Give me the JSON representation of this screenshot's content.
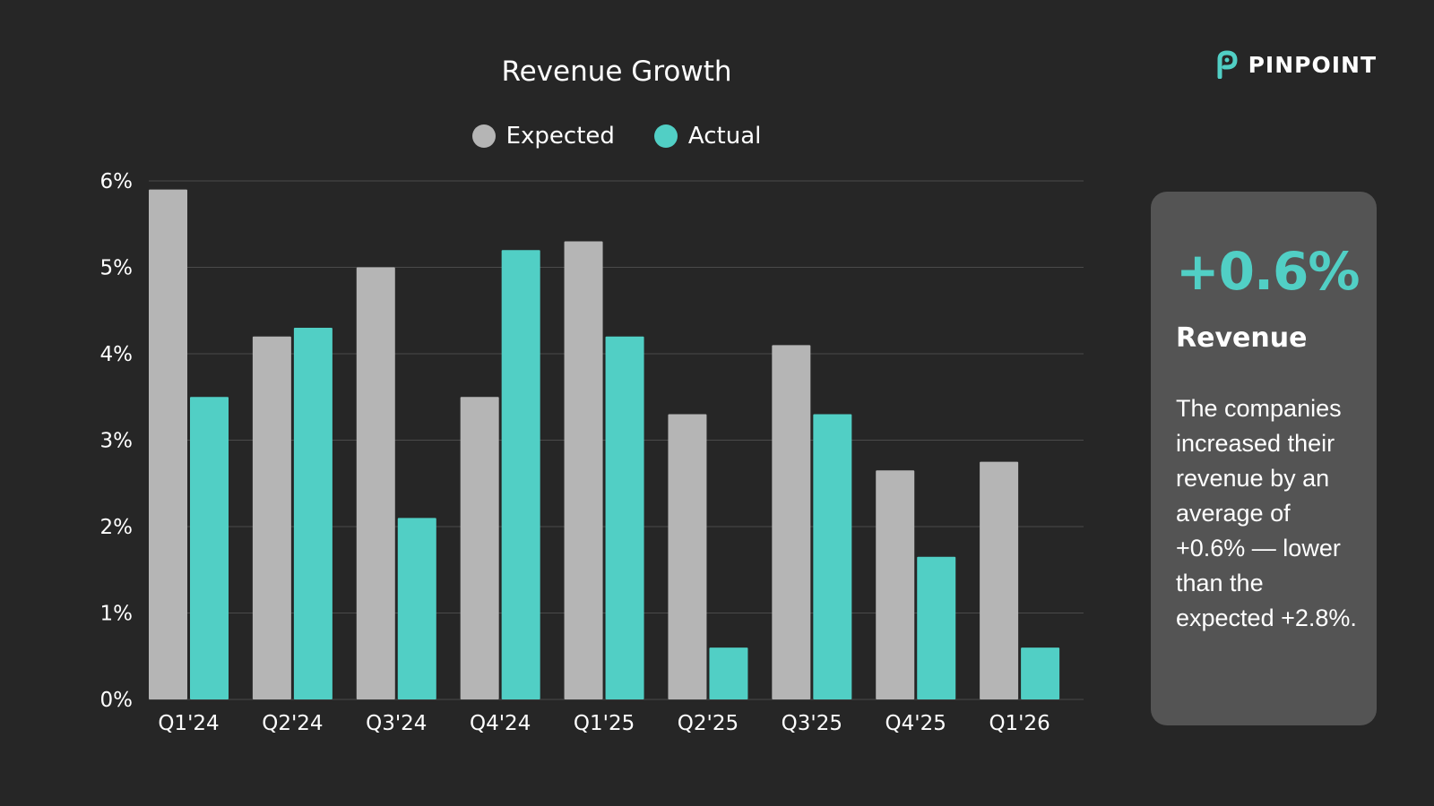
{
  "brand": {
    "name": "PINPOINT",
    "icon": "pinpoint-logo-icon"
  },
  "colors": {
    "background": "#262626",
    "expected": "#b5b5b5",
    "actual": "#51cfc5",
    "card": "#545454",
    "grid": "#4a4a4a"
  },
  "chart_data": {
    "type": "bar",
    "title": "Revenue Growth",
    "categories": [
      "Q1'24",
      "Q2'24",
      "Q3'24",
      "Q4'24",
      "Q1'25",
      "Q2'25",
      "Q3'25",
      "Q4'25",
      "Q1'26"
    ],
    "series": [
      {
        "name": "Expected",
        "values": [
          5.9,
          4.2,
          5.0,
          3.5,
          5.3,
          3.3,
          4.1,
          2.65,
          2.75
        ]
      },
      {
        "name": "Actual",
        "values": [
          3.5,
          4.3,
          2.1,
          5.2,
          4.2,
          0.6,
          3.3,
          1.65,
          0.6
        ]
      }
    ],
    "ylim": [
      0,
      6
    ],
    "yticks": [
      "0%",
      "1%",
      "2%",
      "3%",
      "4%",
      "5%",
      "6%"
    ],
    "legend_position": "top-center",
    "grid": true
  },
  "card": {
    "value": "+0.6%",
    "label": "Revenue",
    "description": "The companies increased their revenue by an average of +0.6% — lower than the expected +2.8%."
  }
}
